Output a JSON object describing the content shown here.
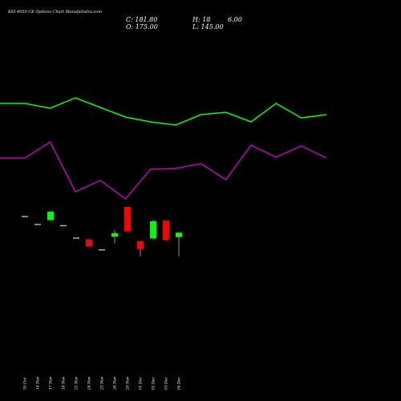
{
  "header": {
    "title": "KEI 4050  CE Options  Chart ManafaSutra.com",
    "close": "C: 181.80",
    "high": "H: 18",
    "high_tail": "6.00",
    "open": "O: 175.00",
    "low": "L: 145.00"
  },
  "chart_data": {
    "type": "candlestick",
    "title": "KEI 4050  CE Options  Chart ManafaSutra.com",
    "categories": [
      "30 Oct",
      "14 Nov",
      "17 Nov",
      "18 Nov",
      "21 Nov",
      "24 Nov",
      "25 Nov",
      "26 Nov",
      "29 Nov",
      "01 Dec",
      "02 Dec",
      "03 Dec",
      "04 Dec"
    ],
    "candles": [
      {
        "o": 109.5,
        "h": 109.5,
        "l": 109.5,
        "c": 109.5
      },
      {
        "o": 99.6,
        "h": 99.6,
        "l": 99.6,
        "c": 99.6
      },
      {
        "o": 104.6,
        "h": 115.2,
        "l": 104.6,
        "c": 115.2
      },
      {
        "o": 98.2,
        "h": 98.2,
        "l": 98.2,
        "c": 98.2
      },
      {
        "o": 82.6,
        "h": 82.6,
        "l": 82.6,
        "c": 82.6
      },
      {
        "o": 80.5,
        "h": 80.5,
        "l": 72.0,
        "c": 72.0
      },
      {
        "o": 67.8,
        "h": 67.8,
        "l": 67.8,
        "c": 67.8
      },
      {
        "o": 84.0,
        "h": 92.5,
        "l": 75.5,
        "c": 88.2
      },
      {
        "o": 120.9,
        "h": 120.9,
        "l": 90.4,
        "c": 90.4
      },
      {
        "o": 78.3,
        "h": 78.3,
        "l": 59.2,
        "c": 68.4
      },
      {
        "o": 81.9,
        "h": 104.6,
        "l": 80.5,
        "c": 103.2
      },
      {
        "o": 103.9,
        "h": 103.9,
        "l": 79.8,
        "c": 79.8
      },
      {
        "o": 83.3,
        "h": 88.9,
        "l": 59.2,
        "c": 88.9
      }
    ],
    "green_line": [
      301,
      301,
      295,
      308,
      296,
      284,
      278,
      274,
      287,
      290,
      278,
      301,
      283,
      287
    ],
    "magenta_line": [
      205,
      205,
      225,
      163,
      177,
      154,
      191,
      192,
      198,
      178,
      221,
      206,
      220,
      205
    ],
    "colors": {
      "background": "#000000",
      "up": "#00ff00",
      "down": "#ff0000",
      "wick": "#ffffff",
      "green_line": "#00ff00",
      "magenta_line": "#c000c0"
    }
  }
}
